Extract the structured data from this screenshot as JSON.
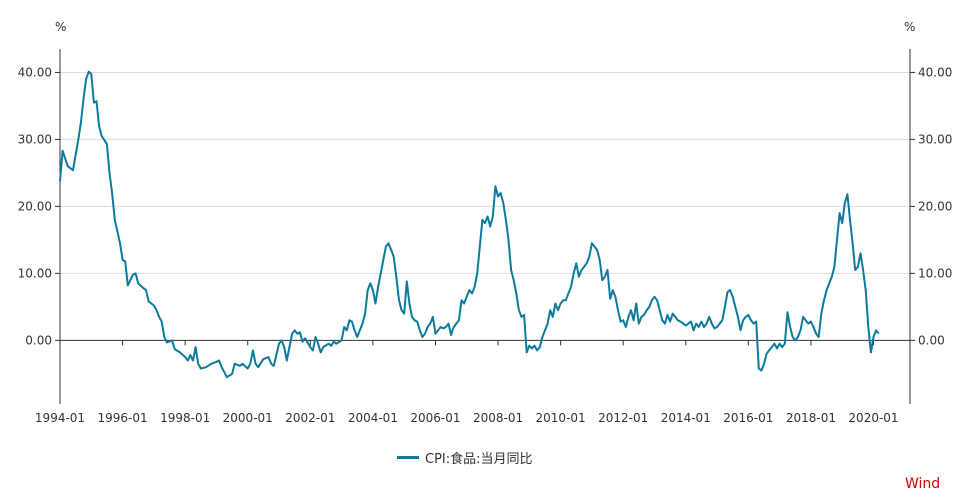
{
  "chart_data": {
    "type": "line",
    "unit_left": "%",
    "unit_right": "%",
    "y_ticks": [
      "40.00",
      "30.00",
      "20.00",
      "10.00",
      "0.00"
    ],
    "y_tick_values": [
      40,
      30,
      20,
      10,
      0
    ],
    "x_ticks": [
      "1994-01",
      "1996-01",
      "1998-01",
      "2000-01",
      "2002-01",
      "2004-01",
      "2006-01",
      "2008-01",
      "2010-01",
      "2012-01",
      "2014-01",
      "2016-01",
      "2018-01",
      "2020-01"
    ],
    "x_tick_years": [
      1994,
      1996,
      1998,
      2000,
      2002,
      2004,
      2006,
      2008,
      2010,
      2012,
      2014,
      2016,
      2018,
      2020
    ],
    "x_range": [
      "1994-01",
      "2021-03"
    ],
    "ylim": [
      -9.5,
      43.5
    ],
    "grid": true,
    "legend_position": "bottom",
    "series": [
      {
        "name": "CPI:食品:当月同比",
        "color": "#0b7a9c",
        "points": [
          [
            "1994-01",
            23.8
          ],
          [
            "1994-02",
            28.3
          ],
          [
            "1994-04",
            26.0
          ],
          [
            "1994-06",
            25.4
          ],
          [
            "1994-08",
            30.0
          ],
          [
            "1994-09",
            32.5
          ],
          [
            "1994-10",
            36.0
          ],
          [
            "1994-11",
            39.0
          ],
          [
            "1994-12",
            40.1
          ],
          [
            "1995-01",
            39.8
          ],
          [
            "1995-02",
            35.5
          ],
          [
            "1995-03",
            35.7
          ],
          [
            "1995-04",
            32.0
          ],
          [
            "1995-05",
            30.5
          ],
          [
            "1995-07",
            29.3
          ],
          [
            "1995-08",
            25.0
          ],
          [
            "1995-09",
            22.0
          ],
          [
            "1995-10",
            18.0
          ],
          [
            "1995-12",
            14.5
          ],
          [
            "1996-01",
            12.0
          ],
          [
            "1996-02",
            11.8
          ],
          [
            "1996-03",
            8.2
          ],
          [
            "1996-05",
            9.8
          ],
          [
            "1996-06",
            10.0
          ],
          [
            "1996-07",
            8.5
          ],
          [
            "1996-09",
            7.8
          ],
          [
            "1996-10",
            7.5
          ],
          [
            "1996-11",
            5.8
          ],
          [
            "1997-01",
            5.2
          ],
          [
            "1997-02",
            4.5
          ],
          [
            "1997-03",
            3.5
          ],
          [
            "1997-04",
            2.8
          ],
          [
            "1997-05",
            0.5
          ],
          [
            "1997-06",
            -0.3
          ],
          [
            "1997-08",
            0.0
          ],
          [
            "1997-09",
            -1.3
          ],
          [
            "1997-11",
            -1.8
          ],
          [
            "1998-01",
            -2.5
          ],
          [
            "1998-02",
            -3.0
          ],
          [
            "1998-03",
            -2.2
          ],
          [
            "1998-04",
            -3.0
          ],
          [
            "1998-05",
            -1.0
          ],
          [
            "1998-06",
            -3.5
          ],
          [
            "1998-07",
            -4.2
          ],
          [
            "1998-09",
            -4.0
          ],
          [
            "1998-11",
            -3.5
          ],
          [
            "1999-01",
            -3.2
          ],
          [
            "1999-02",
            -3.0
          ],
          [
            "1999-03",
            -4.0
          ],
          [
            "1999-05",
            -5.5
          ],
          [
            "1999-07",
            -5.0
          ],
          [
            "1999-08",
            -3.5
          ],
          [
            "1999-10",
            -3.8
          ],
          [
            "1999-11",
            -3.5
          ],
          [
            "2000-01",
            -4.2
          ],
          [
            "2000-02",
            -3.5
          ],
          [
            "2000-03",
            -1.5
          ],
          [
            "2000-04",
            -3.5
          ],
          [
            "2000-05",
            -4.0
          ],
          [
            "2000-07",
            -2.8
          ],
          [
            "2000-09",
            -2.5
          ],
          [
            "2000-10",
            -3.5
          ],
          [
            "2000-11",
            -3.8
          ],
          [
            "2001-01",
            -0.5
          ],
          [
            "2001-02",
            0.0
          ],
          [
            "2001-03",
            -1.0
          ],
          [
            "2001-04",
            -3.0
          ],
          [
            "2001-06",
            1.0
          ],
          [
            "2001-07",
            1.5
          ],
          [
            "2001-08",
            1.0
          ],
          [
            "2001-09",
            1.2
          ],
          [
            "2001-10",
            -0.2
          ],
          [
            "2001-11",
            0.3
          ],
          [
            "2002-01",
            -1.0
          ],
          [
            "2002-02",
            -1.5
          ],
          [
            "2002-03",
            0.5
          ],
          [
            "2002-04",
            -0.5
          ],
          [
            "2002-05",
            -1.8
          ],
          [
            "2002-06",
            -1.0
          ],
          [
            "2002-08",
            -0.5
          ],
          [
            "2002-09",
            -0.8
          ],
          [
            "2002-10",
            -0.2
          ],
          [
            "2002-11",
            -0.5
          ],
          [
            "2003-01",
            0.0
          ],
          [
            "2003-02",
            2.0
          ],
          [
            "2003-03",
            1.5
          ],
          [
            "2003-04",
            3.0
          ],
          [
            "2003-05",
            2.8
          ],
          [
            "2003-06",
            1.5
          ],
          [
            "2003-07",
            0.5
          ],
          [
            "2003-08",
            1.5
          ],
          [
            "2003-09",
            2.5
          ],
          [
            "2003-10",
            4.0
          ],
          [
            "2003-11",
            7.5
          ],
          [
            "2003-12",
            8.5
          ],
          [
            "2004-01",
            7.5
          ],
          [
            "2004-02",
            5.5
          ],
          [
            "2004-03",
            8.0
          ],
          [
            "2004-04",
            10.0
          ],
          [
            "2004-05",
            12.0
          ],
          [
            "2004-06",
            14.0
          ],
          [
            "2004-07",
            14.5
          ],
          [
            "2004-08",
            13.5
          ],
          [
            "2004-09",
            12.5
          ],
          [
            "2004-10",
            9.5
          ],
          [
            "2004-11",
            6.0
          ],
          [
            "2004-12",
            4.5
          ],
          [
            "2005-01",
            4.0
          ],
          [
            "2005-02",
            8.8
          ],
          [
            "2005-03",
            5.5
          ],
          [
            "2005-04",
            3.5
          ],
          [
            "2005-05",
            3.0
          ],
          [
            "2005-06",
            2.8
          ],
          [
            "2005-07",
            1.5
          ],
          [
            "2005-08",
            0.5
          ],
          [
            "2005-09",
            1.0
          ],
          [
            "2005-10",
            2.0
          ],
          [
            "2005-11",
            2.5
          ],
          [
            "2005-12",
            3.5
          ],
          [
            "2006-01",
            1.0
          ],
          [
            "2006-02",
            1.5
          ],
          [
            "2006-03",
            2.0
          ],
          [
            "2006-04",
            1.8
          ],
          [
            "2006-05",
            2.0
          ],
          [
            "2006-06",
            2.5
          ],
          [
            "2006-07",
            0.8
          ],
          [
            "2006-08",
            2.0
          ],
          [
            "2006-09",
            2.5
          ],
          [
            "2006-10",
            3.0
          ],
          [
            "2006-11",
            6.0
          ],
          [
            "2006-12",
            5.5
          ],
          [
            "2007-01",
            6.5
          ],
          [
            "2007-02",
            7.5
          ],
          [
            "2007-03",
            7.0
          ],
          [
            "2007-04",
            8.0
          ],
          [
            "2007-05",
            10.0
          ],
          [
            "2007-06",
            14.0
          ],
          [
            "2007-07",
            18.0
          ],
          [
            "2007-08",
            17.5
          ],
          [
            "2007-09",
            18.5
          ],
          [
            "2007-10",
            17.0
          ],
          [
            "2007-11",
            18.5
          ],
          [
            "2007-12",
            23.0
          ],
          [
            "2008-01",
            21.5
          ],
          [
            "2008-02",
            22.0
          ],
          [
            "2008-03",
            20.5
          ],
          [
            "2008-04",
            18.0
          ],
          [
            "2008-05",
            15.0
          ],
          [
            "2008-06",
            10.5
          ],
          [
            "2008-07",
            9.0
          ],
          [
            "2008-08",
            7.0
          ],
          [
            "2008-09",
            4.5
          ],
          [
            "2008-10",
            3.5
          ],
          [
            "2008-11",
            3.8
          ],
          [
            "2008-12",
            -1.8
          ],
          [
            "2009-01",
            -0.8
          ],
          [
            "2009-02",
            -1.2
          ],
          [
            "2009-03",
            -0.8
          ],
          [
            "2009-04",
            -1.5
          ],
          [
            "2009-05",
            -1.0
          ],
          [
            "2009-06",
            0.5
          ],
          [
            "2009-07",
            1.5
          ],
          [
            "2009-08",
            2.5
          ],
          [
            "2009-09",
            4.5
          ],
          [
            "2009-10",
            3.5
          ],
          [
            "2009-11",
            5.5
          ],
          [
            "2009-12",
            4.5
          ],
          [
            "2010-01",
            5.5
          ],
          [
            "2010-02",
            6.0
          ],
          [
            "2010-03",
            6.0
          ],
          [
            "2010-04",
            7.0
          ],
          [
            "2010-05",
            8.0
          ],
          [
            "2010-06",
            10.0
          ],
          [
            "2010-07",
            11.5
          ],
          [
            "2010-08",
            9.5
          ],
          [
            "2010-09",
            10.5
          ],
          [
            "2010-10",
            11.0
          ],
          [
            "2010-11",
            11.5
          ],
          [
            "2010-12",
            12.5
          ],
          [
            "2011-01",
            14.5
          ],
          [
            "2011-02",
            14.0
          ],
          [
            "2011-03",
            13.5
          ],
          [
            "2011-04",
            12.0
          ],
          [
            "2011-05",
            9.0
          ],
          [
            "2011-06",
            9.5
          ],
          [
            "2011-07",
            10.5
          ],
          [
            "2011-08",
            6.2
          ],
          [
            "2011-09",
            7.5
          ],
          [
            "2011-10",
            6.5
          ],
          [
            "2011-11",
            4.5
          ],
          [
            "2011-12",
            2.8
          ],
          [
            "2012-01",
            3.0
          ],
          [
            "2012-02",
            2.0
          ],
          [
            "2012-03",
            3.5
          ],
          [
            "2012-04",
            4.5
          ],
          [
            "2012-05",
            3.0
          ],
          [
            "2012-06",
            5.5
          ],
          [
            "2012-07",
            2.5
          ],
          [
            "2012-08",
            3.5
          ],
          [
            "2012-09",
            3.8
          ],
          [
            "2012-10",
            4.5
          ],
          [
            "2012-11",
            5.0
          ],
          [
            "2012-12",
            6.0
          ],
          [
            "2013-01",
            6.5
          ],
          [
            "2013-02",
            6.0
          ],
          [
            "2013-03",
            4.5
          ],
          [
            "2013-04",
            3.0
          ],
          [
            "2013-05",
            2.5
          ],
          [
            "2013-06",
            3.8
          ],
          [
            "2013-07",
            2.8
          ],
          [
            "2013-08",
            4.0
          ],
          [
            "2013-09",
            3.5
          ],
          [
            "2013-10",
            3.0
          ],
          [
            "2013-11",
            2.8
          ],
          [
            "2013-12",
            2.5
          ],
          [
            "2014-01",
            2.2
          ],
          [
            "2014-02",
            2.5
          ],
          [
            "2014-03",
            2.8
          ],
          [
            "2014-04",
            1.5
          ],
          [
            "2014-05",
            2.5
          ],
          [
            "2014-06",
            2.0
          ],
          [
            "2014-07",
            2.8
          ],
          [
            "2014-08",
            2.0
          ],
          [
            "2014-09",
            2.5
          ],
          [
            "2014-10",
            3.5
          ],
          [
            "2014-11",
            2.5
          ],
          [
            "2014-12",
            1.8
          ],
          [
            "2015-01",
            2.0
          ],
          [
            "2015-02",
            2.5
          ],
          [
            "2015-03",
            3.0
          ],
          [
            "2015-04",
            5.0
          ],
          [
            "2015-05",
            7.2
          ],
          [
            "2015-06",
            7.5
          ],
          [
            "2015-07",
            6.5
          ],
          [
            "2015-08",
            5.0
          ],
          [
            "2015-09",
            3.5
          ],
          [
            "2015-10",
            1.5
          ],
          [
            "2015-11",
            3.0
          ],
          [
            "2015-12",
            3.5
          ],
          [
            "2016-01",
            3.8
          ],
          [
            "2016-02",
            3.0
          ],
          [
            "2016-03",
            2.5
          ],
          [
            "2016-04",
            2.8
          ],
          [
            "2016-05",
            -4.2
          ],
          [
            "2016-06",
            -4.5
          ],
          [
            "2016-07",
            -3.5
          ],
          [
            "2016-08",
            -2.0
          ],
          [
            "2016-09",
            -1.5
          ],
          [
            "2016-10",
            -1.0
          ],
          [
            "2016-11",
            -0.5
          ],
          [
            "2016-12",
            -1.2
          ],
          [
            "2017-01",
            -0.5
          ],
          [
            "2017-02",
            -1.0
          ],
          [
            "2017-03",
            -0.5
          ],
          [
            "2017-04",
            4.2
          ],
          [
            "2017-05",
            2.0
          ],
          [
            "2017-06",
            0.5
          ],
          [
            "2017-07",
            0.0
          ],
          [
            "2017-08",
            0.5
          ],
          [
            "2017-09",
            1.5
          ],
          [
            "2017-10",
            3.5
          ],
          [
            "2017-11",
            3.0
          ],
          [
            "2017-12",
            2.5
          ],
          [
            "2018-01",
            2.8
          ],
          [
            "2018-02",
            2.0
          ],
          [
            "2018-03",
            1.0
          ],
          [
            "2018-04",
            0.5
          ],
          [
            "2018-05",
            4.0
          ],
          [
            "2018-06",
            6.0
          ],
          [
            "2018-07",
            7.5
          ],
          [
            "2018-08",
            8.5
          ],
          [
            "2018-09",
            9.5
          ],
          [
            "2018-10",
            11.0
          ],
          [
            "2018-11",
            15.0
          ],
          [
            "2018-12",
            19.0
          ],
          [
            "2019-01",
            17.5
          ],
          [
            "2019-02",
            20.5
          ],
          [
            "2019-03",
            21.8
          ],
          [
            "2019-04",
            18.0
          ],
          [
            "2019-05",
            14.5
          ],
          [
            "2019-06",
            10.5
          ],
          [
            "2019-07",
            11.0
          ],
          [
            "2019-08",
            13.0
          ],
          [
            "2019-09",
            10.5
          ],
          [
            "2019-10",
            7.5
          ],
          [
            "2019-11",
            2.0
          ],
          [
            "2019-12",
            -1.8
          ],
          [
            "2020-01",
            0.5
          ],
          [
            "2020-02",
            1.5
          ],
          [
            "2020-03",
            1.0
          ]
        ]
      }
    ]
  },
  "legend": {
    "label": "CPI:食品:当月同比"
  },
  "watermark": "Wind"
}
